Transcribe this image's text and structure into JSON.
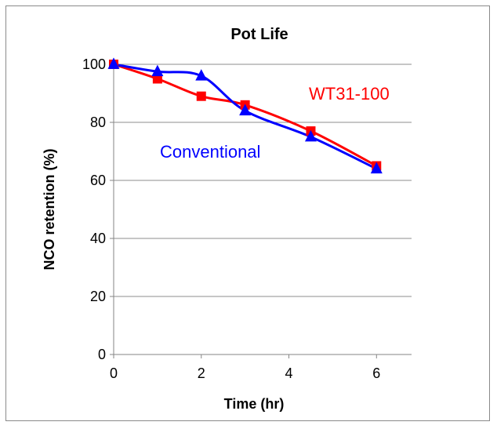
{
  "chart_data": {
    "type": "line",
    "title": "Pot Life",
    "xlabel": "Time (hr)",
    "ylabel": "NCO retention (%)",
    "xlim": [
      0,
      6.8
    ],
    "ylim": [
      0,
      100
    ],
    "xticks": [
      0,
      2,
      4,
      6
    ],
    "yticks": [
      0,
      20,
      40,
      60,
      80,
      100
    ],
    "grid": "horizontal",
    "legend": "none",
    "series": [
      {
        "name": "WT31-100",
        "color": "#ff0000",
        "marker": "square",
        "x": [
          0,
          1,
          2,
          3,
          4.5,
          6
        ],
        "y": [
          100,
          95,
          89,
          86,
          77,
          65
        ]
      },
      {
        "name": "Conventional",
        "color": "#0000ff",
        "marker": "triangle",
        "x": [
          0,
          1,
          2,
          3,
          4.5,
          6
        ],
        "y": [
          100,
          97.5,
          96,
          84,
          75,
          64
        ]
      }
    ]
  }
}
